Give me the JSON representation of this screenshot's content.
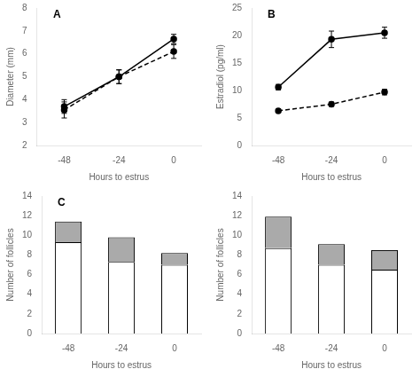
{
  "chart_data": [
    {
      "type": "line",
      "annotations": [
        "A"
      ],
      "x": [
        -48,
        -24,
        0
      ],
      "series": [
        {
          "color": "#000000",
          "line_style": "solid",
          "marker": "circle",
          "values": [
            3.7,
            5.0,
            6.65
          ],
          "errors": [
            0.3,
            0.3,
            0.2
          ]
        },
        {
          "color": "#000000",
          "line_style": "dashed",
          "marker": "circle",
          "values": [
            3.55,
            5.0,
            6.1
          ],
          "errors": [
            0.35,
            0.3,
            0.3
          ]
        }
      ],
      "xlabel": "Hours to estrus",
      "ylabel": "Diameter (mm)",
      "xlim": [
        -60,
        12
      ],
      "xticks": [
        -48,
        -24,
        0
      ],
      "ylim": [
        2,
        8
      ],
      "yticks": [
        2,
        3,
        4,
        5,
        6,
        7,
        8
      ],
      "grid": false
    },
    {
      "type": "line",
      "annotations": [
        "B"
      ],
      "x": [
        -48,
        -24,
        0
      ],
      "series": [
        {
          "color": "#000000",
          "line_style": "solid",
          "marker": "circle",
          "values": [
            10.6,
            19.3,
            20.5
          ],
          "errors": [
            0.5,
            1.5,
            1.0
          ]
        },
        {
          "color": "#000000",
          "line_style": "dashed",
          "marker": "circle",
          "values": [
            6.3,
            7.5,
            9.7
          ],
          "errors": [
            0.3,
            0.4,
            0.5
          ]
        }
      ],
      "xlabel": "Hours to estrus",
      "ylabel": "Estradiol (pg/ml)",
      "xlim": [
        -60,
        12
      ],
      "xticks": [
        -48,
        -24,
        0
      ],
      "ylim": [
        0,
        25
      ],
      "yticks": [
        0,
        5,
        10,
        15,
        20,
        25
      ],
      "grid": false
    },
    {
      "type": "bar",
      "stacked": true,
      "annotations": [
        "C"
      ],
      "categories": [
        "-48",
        "-24",
        "0"
      ],
      "series": [
        {
          "color": "#ffffff",
          "values": [
            9.3,
            7.3,
            7.0
          ]
        },
        {
          "color": "#aaaaaa",
          "values": [
            2.1,
            2.5,
            1.2
          ]
        }
      ],
      "xlabel": "Hours to estrus",
      "ylabel": "Number of follicles",
      "ylim": [
        0,
        14
      ],
      "yticks": [
        0,
        2,
        4,
        6,
        8,
        10,
        12,
        14
      ],
      "grid": false
    },
    {
      "type": "bar",
      "stacked": true,
      "categories": [
        "-48",
        "-24",
        "0"
      ],
      "series": [
        {
          "color": "#ffffff",
          "values": [
            8.7,
            7.0,
            6.5
          ]
        },
        {
          "color": "#aaaaaa",
          "values": [
            3.2,
            2.1,
            2.0
          ]
        }
      ],
      "xlabel": "Hours to estrus",
      "ylabel": "Number of follicles",
      "ylim": [
        0,
        14
      ],
      "yticks": [
        0,
        2,
        4,
        6,
        8,
        10,
        12,
        14
      ],
      "grid": false
    }
  ]
}
